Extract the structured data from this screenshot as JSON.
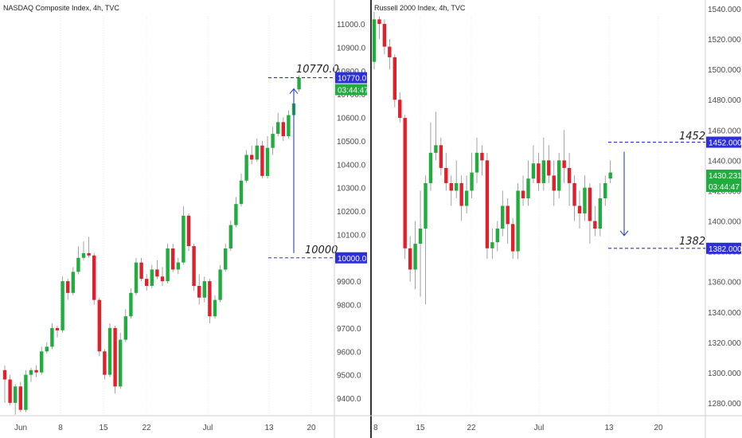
{
  "colors": {
    "up": "#22ab3e",
    "down": "#e0212b",
    "level": "#2d30d8",
    "arrow": "#2b3fbf",
    "grid": "#d9d9d9",
    "divider": "#000000"
  },
  "chart_data": [
    {
      "type": "candlestick",
      "title": "NASDAQ Composite Index, 4h, TVC",
      "ylim": [
        9320,
        11200
      ],
      "y_ticks": [
        9400,
        9500,
        9600,
        9700,
        9800,
        9900,
        10000,
        10100,
        10200,
        10300,
        10400,
        10500,
        10600,
        10700,
        10800,
        10900,
        11000
      ],
      "y_tick_labels": [
        "9400.0",
        "9500.0",
        "9600.0",
        "9700.0",
        "9800.0",
        "9900.0",
        "10000.0",
        "10100.0",
        "10200.0",
        "10300.0",
        "10400.0",
        "10500.0",
        "10600.0",
        "10700.0",
        "10800.0",
        "10900.0",
        "11000.0"
      ],
      "x_labels": [
        "Jun",
        "8",
        "15",
        "22",
        "Jul",
        "13",
        "20"
      ],
      "candles": [
        [
          9520,
          9480,
          9540,
          9380
        ],
        [
          9480,
          9380,
          9500,
          9370
        ],
        [
          9380,
          9450,
          9460,
          9330
        ],
        [
          9450,
          9350,
          9470,
          9340
        ],
        [
          9350,
          9500,
          9520,
          9340
        ],
        [
          9500,
          9520,
          9530,
          9470
        ],
        [
          9520,
          9510,
          9540,
          9490
        ],
        [
          9510,
          9600,
          9620,
          9500
        ],
        [
          9600,
          9620,
          9640,
          9590
        ],
        [
          9620,
          9700,
          9720,
          9610
        ],
        [
          9700,
          9690,
          9710,
          9660
        ],
        [
          9690,
          9900,
          9920,
          9680
        ],
        [
          9900,
          9850,
          9910,
          9820
        ],
        [
          9850,
          9940,
          9960,
          9840
        ],
        [
          9940,
          10000,
          10050,
          9930
        ],
        [
          10000,
          10020,
          10070,
          9990
        ],
        [
          10020,
          10010,
          10090,
          10000
        ],
        [
          10010,
          9820,
          10020,
          9800
        ],
        [
          9820,
          9600,
          9830,
          9580
        ],
        [
          9600,
          9500,
          9610,
          9480
        ],
        [
          9500,
          9700,
          9720,
          9490
        ],
        [
          9700,
          9450,
          9710,
          9420
        ],
        [
          9450,
          9650,
          9680,
          9440
        ],
        [
          9650,
          9750,
          9780,
          9640
        ],
        [
          9750,
          9850,
          9870,
          9740
        ],
        [
          9850,
          9980,
          10000,
          9840
        ],
        [
          9980,
          9910,
          10000,
          9900
        ],
        [
          9910,
          9880,
          9930,
          9860
        ],
        [
          9880,
          9950,
          9970,
          9870
        ],
        [
          9950,
          9920,
          9990,
          9910
        ],
        [
          9920,
          9900,
          9960,
          9880
        ],
        [
          9900,
          10040,
          10060,
          9890
        ],
        [
          10040,
          9950,
          10060,
          9940
        ],
        [
          9950,
          9980,
          10000,
          9930
        ],
        [
          9980,
          10180,
          10220,
          9970
        ],
        [
          10180,
          10050,
          10190,
          10030
        ],
        [
          10050,
          9880,
          10060,
          9860
        ],
        [
          9880,
          9830,
          9930,
          9800
        ],
        [
          9830,
          9900,
          9920,
          9810
        ],
        [
          9900,
          9750,
          9910,
          9720
        ],
        [
          9750,
          9820,
          9840,
          9740
        ],
        [
          9820,
          9950,
          9970,
          9810
        ],
        [
          9950,
          10040,
          10060,
          9940
        ],
        [
          10040,
          10140,
          10160,
          10030
        ],
        [
          10140,
          10230,
          10260,
          10130
        ],
        [
          10230,
          10330,
          10360,
          10220
        ],
        [
          10330,
          10440,
          10460,
          10320
        ],
        [
          10440,
          10420,
          10480,
          10400
        ],
        [
          10420,
          10480,
          10510,
          10410
        ],
        [
          10480,
          10350,
          10500,
          10340
        ],
        [
          10350,
          10470,
          10520,
          10340
        ],
        [
          10470,
          10530,
          10560,
          10440
        ],
        [
          10530,
          10580,
          10620,
          10520
        ],
        [
          10580,
          10520,
          10600,
          10500
        ],
        [
          10520,
          10610,
          10630,
          10510
        ],
        [
          10610,
          10660,
          10680,
          10600
        ],
        [
          10720,
          10770,
          10780,
          10710
        ]
      ],
      "annotations": {
        "target": "10770.0",
        "base": "10000",
        "target_value": 10770,
        "base_value": 10000
      },
      "price_tags": {
        "target": "10770.0",
        "base": "10000.0",
        "timer": "03:44:47"
      }
    },
    {
      "type": "candlestick",
      "title": "Russell 2000 Index, 4h, TVC",
      "ylim": [
        1271,
        1543
      ],
      "y_ticks": [
        1280,
        1300,
        1320,
        1340,
        1360,
        1380,
        1400,
        1420,
        1440,
        1460,
        1480,
        1500,
        1520,
        1540
      ],
      "y_tick_labels": [
        "1280.000",
        "1300.000",
        "1320.000",
        "1340.000",
        "1360.000",
        "1380.000",
        "1400.000",
        "1420.000",
        "1440.000",
        "1460.000",
        "1480.000",
        "1500.000",
        "1520.000",
        "1540.000"
      ],
      "x_labels": [
        "8",
        "15",
        "22",
        "Jul",
        "13",
        "20"
      ],
      "candles": [
        [
          1505,
          1533,
          1538,
          1500
        ],
        [
          1533,
          1530,
          1535,
          1520
        ],
        [
          1530,
          1515,
          1533,
          1510
        ],
        [
          1515,
          1508,
          1520,
          1500
        ],
        [
          1508,
          1480,
          1510,
          1475
        ],
        [
          1480,
          1468,
          1485,
          1465
        ],
        [
          1468,
          1382,
          1470,
          1375
        ],
        [
          1382,
          1368,
          1390,
          1360
        ],
        [
          1368,
          1385,
          1400,
          1355
        ],
        [
          1385,
          1395,
          1420,
          1350
        ],
        [
          1395,
          1425,
          1430,
          1345
        ],
        [
          1425,
          1445,
          1465,
          1420
        ],
        [
          1445,
          1450,
          1472,
          1440
        ],
        [
          1450,
          1435,
          1455,
          1430
        ],
        [
          1435,
          1425,
          1445,
          1420
        ],
        [
          1425,
          1420,
          1430,
          1410
        ],
        [
          1420,
          1425,
          1440,
          1415
        ],
        [
          1425,
          1410,
          1430,
          1400
        ],
        [
          1410,
          1420,
          1430,
          1405
        ],
        [
          1420,
          1432,
          1445,
          1415
        ],
        [
          1432,
          1445,
          1455,
          1425
        ],
        [
          1445,
          1440,
          1450,
          1430
        ],
        [
          1440,
          1382,
          1445,
          1375
        ],
        [
          1382,
          1386,
          1395,
          1375
        ],
        [
          1386,
          1395,
          1400,
          1380
        ],
        [
          1395,
          1410,
          1420,
          1390
        ],
        [
          1410,
          1398,
          1415,
          1385
        ],
        [
          1398,
          1380,
          1402,
          1375
        ],
        [
          1380,
          1420,
          1425,
          1375
        ],
        [
          1420,
          1415,
          1430,
          1410
        ],
        [
          1415,
          1428,
          1440,
          1410
        ],
        [
          1428,
          1438,
          1450,
          1425
        ],
        [
          1438,
          1425,
          1445,
          1420
        ],
        [
          1425,
          1440,
          1455,
          1420
        ],
        [
          1440,
          1430,
          1450,
          1425
        ],
        [
          1430,
          1420,
          1440,
          1410
        ],
        [
          1420,
          1440,
          1445,
          1415
        ],
        [
          1440,
          1435,
          1460,
          1425
        ],
        [
          1435,
          1425,
          1445,
          1410
        ],
        [
          1425,
          1410,
          1430,
          1400
        ],
        [
          1410,
          1405,
          1420,
          1395
        ],
        [
          1405,
          1422,
          1430,
          1400
        ],
        [
          1422,
          1400,
          1425,
          1385
        ],
        [
          1400,
          1395,
          1410,
          1390
        ],
        [
          1395,
          1415,
          1425,
          1390
        ],
        [
          1415,
          1425,
          1430,
          1410
        ],
        [
          1428,
          1432,
          1440,
          1425
        ]
      ],
      "annotations": {
        "target": "1452",
        "base": "1382",
        "target_value": 1452,
        "base_value": 1382
      },
      "price_tags": {
        "target": "1452.000",
        "base": "1382.000",
        "last": "1430.231",
        "timer": "03:44:47"
      }
    }
  ]
}
